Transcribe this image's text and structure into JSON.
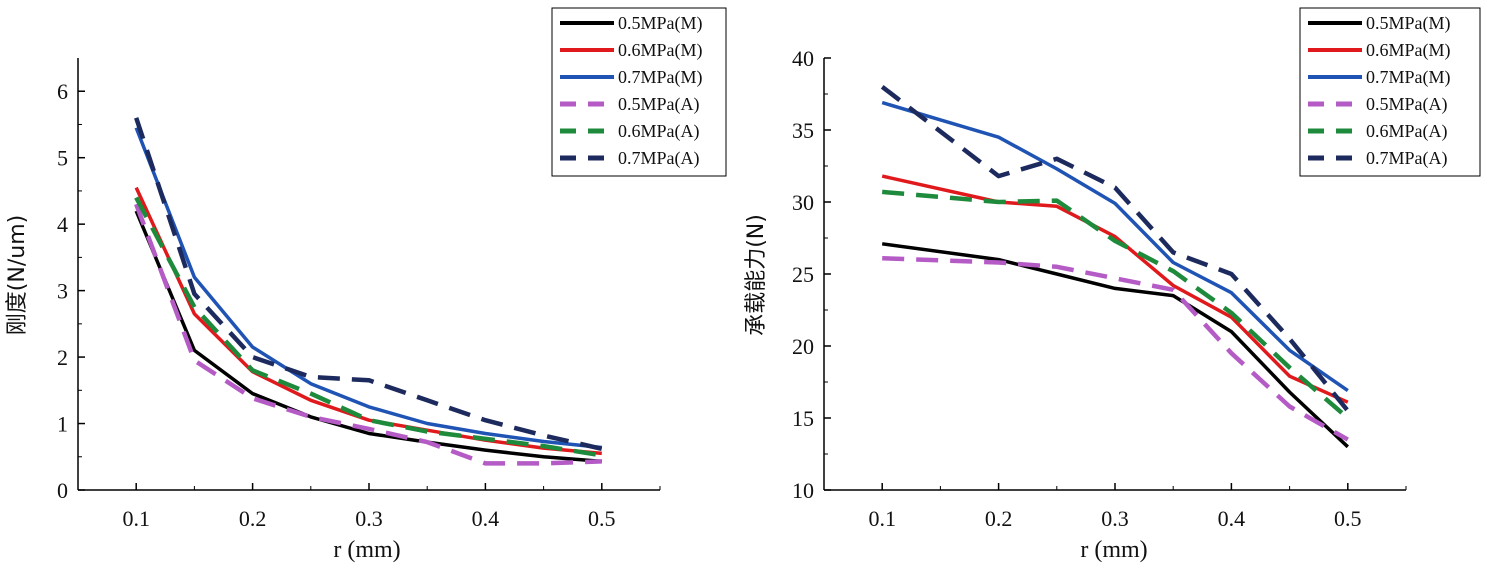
{
  "chart_data": [
    {
      "type": "line",
      "xlabel": "r (mm)",
      "ylabel": "刚度(N/um)",
      "xlim": [
        0.05,
        0.55
      ],
      "ylim": [
        0,
        6.5
      ],
      "xticks": [
        "0.1",
        "0.2",
        "0.3",
        "0.4",
        "0.5"
      ],
      "yticks": [
        "0",
        "1",
        "2",
        "3",
        "4",
        "5",
        "6"
      ],
      "legend_position": "top-right",
      "grid": false,
      "series": [
        {
          "name": "0.5MPa(M)",
          "color": "#000000",
          "dash": "solid",
          "x": [
            0.1,
            0.15,
            0.2,
            0.25,
            0.3,
            0.35,
            0.4,
            0.45,
            0.5
          ],
          "y": [
            4.2,
            2.1,
            1.45,
            1.1,
            0.85,
            0.72,
            0.6,
            0.5,
            0.43
          ]
        },
        {
          "name": "0.6MPa(M)",
          "color": "#e0191c",
          "dash": "solid",
          "x": [
            0.1,
            0.15,
            0.2,
            0.25,
            0.3,
            0.35,
            0.4,
            0.45,
            0.5
          ],
          "y": [
            4.55,
            2.65,
            1.78,
            1.35,
            1.05,
            0.9,
            0.75,
            0.63,
            0.55
          ]
        },
        {
          "name": "0.7MPa(M)",
          "color": "#1f54b4",
          "dash": "solid",
          "x": [
            0.1,
            0.15,
            0.2,
            0.25,
            0.3,
            0.35,
            0.4,
            0.45,
            0.5
          ],
          "y": [
            5.45,
            3.2,
            2.15,
            1.6,
            1.25,
            1.0,
            0.85,
            0.73,
            0.64
          ]
        },
        {
          "name": "0.5MPa(A)",
          "color": "#b55bc6",
          "dash": "dashed",
          "x": [
            0.1,
            0.15,
            0.2,
            0.25,
            0.3,
            0.35,
            0.4,
            0.45,
            0.5
          ],
          "y": [
            4.3,
            1.95,
            1.38,
            1.1,
            0.92,
            0.72,
            0.4,
            0.4,
            0.43
          ]
        },
        {
          "name": "0.6MPa(A)",
          "color": "#1e8a3c",
          "dash": "dashed",
          "x": [
            0.1,
            0.15,
            0.2,
            0.25,
            0.3,
            0.35,
            0.4,
            0.45,
            0.5
          ],
          "y": [
            4.4,
            2.75,
            1.8,
            1.45,
            1.05,
            0.88,
            0.77,
            0.66,
            0.52
          ]
        },
        {
          "name": "0.7MPa(A)",
          "color": "#1c2a5e",
          "dash": "dashed",
          "x": [
            0.1,
            0.15,
            0.2,
            0.25,
            0.3,
            0.35,
            0.4,
            0.45,
            0.5
          ],
          "y": [
            5.6,
            2.95,
            2.0,
            1.7,
            1.65,
            1.35,
            1.05,
            0.82,
            0.62
          ]
        }
      ]
    },
    {
      "type": "line",
      "xlabel": "r (mm)",
      "ylabel": "承载能力(N)",
      "xlim": [
        0.05,
        0.55
      ],
      "ylim": [
        10,
        40
      ],
      "xticks": [
        "0.1",
        "0.2",
        "0.3",
        "0.4",
        "0.5"
      ],
      "yticks": [
        "10",
        "15",
        "20",
        "25",
        "30",
        "35",
        "40"
      ],
      "legend_position": "top-right",
      "grid": false,
      "series": [
        {
          "name": "0.5MPa(M)",
          "color": "#000000",
          "dash": "solid",
          "x": [
            0.1,
            0.2,
            0.25,
            0.3,
            0.35,
            0.4,
            0.45,
            0.5
          ],
          "y": [
            27.1,
            26.0,
            25.0,
            24.0,
            23.5,
            21.0,
            16.8,
            13.0
          ]
        },
        {
          "name": "0.6MPa(M)",
          "color": "#e0191c",
          "dash": "solid",
          "x": [
            0.1,
            0.2,
            0.25,
            0.3,
            0.35,
            0.4,
            0.45,
            0.5
          ],
          "y": [
            31.8,
            30.0,
            29.7,
            27.6,
            24.2,
            22.0,
            17.9,
            16.1
          ]
        },
        {
          "name": "0.7MPa(M)",
          "color": "#1f54b4",
          "dash": "solid",
          "x": [
            0.1,
            0.2,
            0.25,
            0.3,
            0.35,
            0.4,
            0.45,
            0.5
          ],
          "y": [
            36.9,
            34.5,
            32.3,
            29.9,
            25.8,
            23.7,
            19.7,
            16.9
          ]
        },
        {
          "name": "0.5MPa(A)",
          "color": "#b55bc6",
          "dash": "dashed",
          "x": [
            0.1,
            0.2,
            0.25,
            0.3,
            0.35,
            0.4,
            0.45,
            0.5
          ],
          "y": [
            26.1,
            25.8,
            25.5,
            24.7,
            23.9,
            19.5,
            15.8,
            13.5
          ]
        },
        {
          "name": "0.6MPa(A)",
          "color": "#1e8a3c",
          "dash": "dashed",
          "x": [
            0.1,
            0.2,
            0.25,
            0.3,
            0.35,
            0.4,
            0.45,
            0.5
          ],
          "y": [
            30.7,
            30.0,
            30.1,
            27.3,
            25.2,
            22.3,
            18.5,
            15.0
          ]
        },
        {
          "name": "0.7MPa(A)",
          "color": "#1c2a5e",
          "dash": "dashed",
          "x": [
            0.1,
            0.2,
            0.25,
            0.3,
            0.35,
            0.4,
            0.45,
            0.5
          ],
          "y": [
            38.0,
            31.8,
            33.0,
            31.0,
            26.5,
            25.0,
            20.5,
            15.5
          ]
        }
      ]
    }
  ]
}
